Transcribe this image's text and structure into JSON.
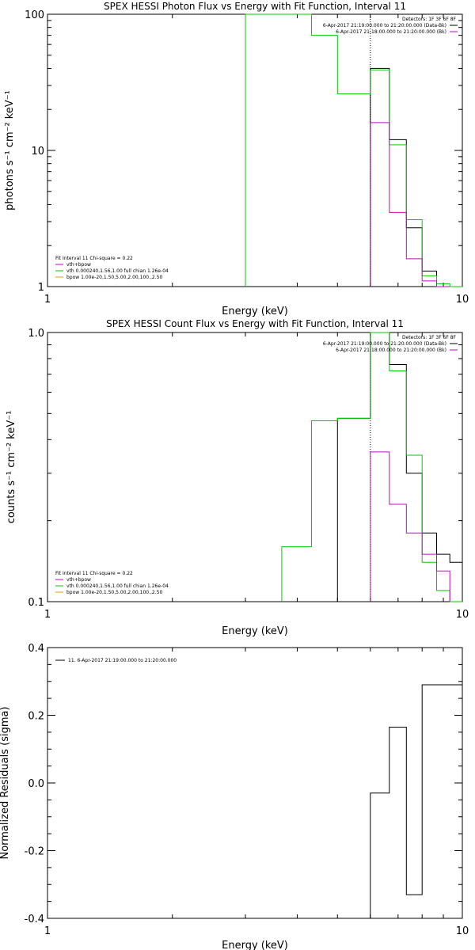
{
  "colors": {
    "data": "#000000",
    "vth": "#00cc00",
    "total": "#cc00cc",
    "bpow": "#e0a000"
  },
  "chart_data": [
    {
      "type": "line",
      "title": "SPEX HESSI Photon Flux vs Energy with Fit Function, Interval 11",
      "xlabel": "Energy (keV)",
      "ylabel": "photons s⁻¹ cm⁻² keV⁻¹",
      "xscale": "log",
      "yscale": "log",
      "xlim": [
        1,
        10
      ],
      "ylim": [
        1,
        100
      ],
      "xticks": [
        {
          "v": 1,
          "label": "1"
        },
        {
          "v": 10,
          "label": "10"
        }
      ],
      "yticks": [
        {
          "v": 1,
          "label": "1"
        },
        {
          "v": 10,
          "label": "10"
        },
        {
          "v": 100,
          "label": "100"
        }
      ],
      "vline": 6.0,
      "detectors_text": "Detectors: 1F 3F 6F 8F",
      "legend_right": [
        {
          "text": "6-Apr-2017 21:19:00.000 to 21:20:00.000 (Data-Bk)",
          "color": "#000000"
        },
        {
          "text": "6-Apr-2017 21:18:00.000 to 21:20:00.000 (Bk)",
          "color": "#cc00cc"
        }
      ],
      "legend_left_title": "Fit Interval 11   Chi-square = 0.22",
      "legend_left": [
        {
          "text": "vth+bpow",
          "color": "#cc00cc"
        },
        {
          "text": "vth 0.000240,1.56,1.00  full chian 1.26e-04",
          "color": "#00cc00"
        },
        {
          "text": "bpow 1.00e-20,1.50,5.00,2.00,100.,2.50",
          "color": "#e0a000"
        }
      ],
      "series": [
        {
          "name": "Data-Bk",
          "color": "#000000",
          "edges": [
            6.0,
            6.67,
            7.33,
            8.0,
            8.67,
            9.33,
            10.0
          ],
          "values": [
            40,
            12,
            2.7,
            1.3,
            1.0,
            1.0
          ]
        },
        {
          "name": "vth",
          "color": "#00cc00",
          "edges": [
            3.0,
            3.67,
            4.33,
            5.0,
            6.0,
            6.67,
            7.33,
            8.0,
            8.67,
            9.33,
            10.0
          ],
          "values": [
            120,
            120,
            70,
            26,
            39,
            11,
            3.1,
            1.2,
            1.05,
            1.0
          ]
        },
        {
          "name": "vth+bpow",
          "color": "#cc00cc",
          "edges": [
            6.0,
            6.67,
            7.33,
            8.0,
            8.67,
            9.33
          ],
          "values": [
            16,
            3.5,
            1.6,
            1.1,
            1.0
          ]
        }
      ]
    },
    {
      "type": "line",
      "title": "SPEX HESSI Count Flux vs Energy with Fit Function, Interval 11",
      "xlabel": "Energy (keV)",
      "ylabel": "counts s⁻¹ cm⁻² keV⁻¹",
      "xscale": "log",
      "yscale": "log",
      "xlim": [
        1,
        10
      ],
      "ylim": [
        0.1,
        1.0
      ],
      "xticks": [
        {
          "v": 1,
          "label": "1"
        },
        {
          "v": 10,
          "label": "10"
        }
      ],
      "yticks": [
        {
          "v": 0.1,
          "label": "0.1"
        },
        {
          "v": 1.0,
          "label": "1.0"
        }
      ],
      "vline": 6.0,
      "detectors_text": "Detectors: 1F 3F 6F 8F",
      "legend_right": [
        {
          "text": "6-Apr-2017 21:19:00.000 to 21:20:00.000 (Data-Bk)",
          "color": "#000000"
        },
        {
          "text": "6-Apr-2017 21:18:00.000 to 21:20:00.000 (Bk)",
          "color": "#cc00cc"
        }
      ],
      "legend_left_title": "Fit Interval 11   Chi-square = 0.22",
      "legend_left": [
        {
          "text": "vth+bpow",
          "color": "#cc00cc"
        },
        {
          "text": "vth 0.000240,1.56,1.00  full chian 1.26e-04",
          "color": "#00cc00"
        },
        {
          "text": "bpow 1.00e-20,1.50,5.00,2.00,100.,2.50",
          "color": "#e0a000"
        }
      ],
      "series": [
        {
          "name": "Data-Bk",
          "color": "#000000",
          "edges": [
            5.0,
            6.0,
            6.67,
            7.33,
            8.0,
            8.67,
            9.33,
            10.0
          ],
          "values": [
            0.48,
            1.0,
            0.76,
            0.3,
            0.18,
            0.15,
            0.14
          ]
        },
        {
          "name": "vth",
          "color": "#00cc00",
          "edges": [
            3.67,
            4.33,
            5.0,
            6.0,
            6.67,
            7.33,
            8.0,
            8.67,
            9.33,
            10.0
          ],
          "values": [
            0.16,
            0.47,
            0.48,
            1.0,
            0.72,
            0.35,
            0.14,
            0.11,
            0.09
          ]
        },
        {
          "name": "vth+bpow",
          "color": "#cc00cc",
          "edges": [
            6.0,
            6.67,
            7.33,
            8.0,
            8.67,
            9.33
          ],
          "values": [
            0.36,
            0.23,
            0.18,
            0.15,
            0.13
          ]
        }
      ]
    },
    {
      "type": "line",
      "title": "",
      "xlabel": "Energy (keV)",
      "ylabel": "Normalized Residuals (sigma)",
      "xscale": "log",
      "yscale": "linear",
      "xlim": [
        1,
        10
      ],
      "ylim": [
        -0.4,
        0.4
      ],
      "xticks": [
        {
          "v": 1,
          "label": "1"
        },
        {
          "v": 10,
          "label": "10"
        }
      ],
      "yticks": [
        {
          "v": -0.4,
          "label": "-0.4"
        },
        {
          "v": -0.2,
          "label": "-0.2"
        },
        {
          "v": 0.0,
          "label": "0.0"
        },
        {
          "v": 0.2,
          "label": "0.2"
        },
        {
          "v": 0.4,
          "label": "0.4"
        }
      ],
      "legend_left_title": "11.  6-Apr-2017 21:19:00.000 to 21:20:00.000",
      "series": [
        {
          "name": "11",
          "color": "#000000",
          "edges": [
            6.0,
            6.67,
            7.33,
            8.0,
            8.67,
            9.33,
            10.0
          ],
          "values": [
            -0.03,
            0.165,
            -0.33,
            0.29,
            0.29,
            0.29
          ]
        }
      ]
    }
  ]
}
